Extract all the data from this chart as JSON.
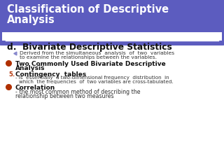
{
  "title_line1": "Classification of Descriptive",
  "title_line2": "Analysis",
  "title_bg_color": "#5c5cbf",
  "title_text_color": "#ffffff",
  "body_bg_color": "#ffffff",
  "border_color": "#5aadad",
  "heading_d": "d.  Bivariate Descriptive Statistics",
  "heading_d_color": "#111111",
  "bullet_small_color": "#8888cc",
  "bullet_small_text1": "Derived from the simultaneous  analysis  of  two  variables",
  "bullet_small_text2": "to examine the relationships between the variables.",
  "bullet_red_color": "#b03000",
  "bullet1_bold1": "Two Commonly Used Bivariate Descriptive",
  "bullet1_bold2": "Analysis",
  "num5_color": "#b03000",
  "num5_label": "5.",
  "contingency_bold": "Contingency  tables",
  "contingency_text1": "- is  essentially  a two-dimensional frequency  distribution  in",
  "contingency_text2": "which  the frequencies  of  two variables are cross-tabulated.",
  "correlation_bold": "Correlation",
  "correlation_text1": "- the most common method of describing the",
  "correlation_text2": "relationship between two measures"
}
